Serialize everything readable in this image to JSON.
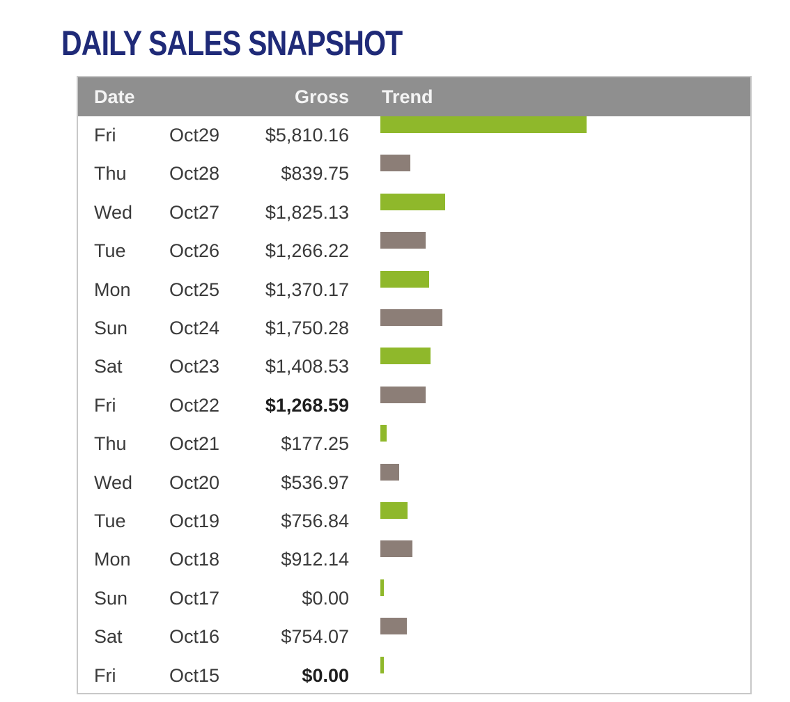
{
  "title": "DAILY SALES SNAPSHOT",
  "header": {
    "date": "Date",
    "gross": "Gross",
    "trend": "Trend"
  },
  "colors": {
    "title": "#1f2a78",
    "header_bg": "#8f8f8f",
    "bar_green": "#8fb82b",
    "bar_gray": "#8c7e77"
  },
  "chart_data": {
    "type": "bar",
    "title": "DAILY SALES SNAPSHOT",
    "xlabel": "Date",
    "ylabel": "Gross",
    "orientation": "horizontal",
    "categories": [
      "Fri Oct29",
      "Thu Oct28",
      "Wed Oct27",
      "Tue Oct26",
      "Mon Oct25",
      "Sun Oct24",
      "Sat Oct23",
      "Fri Oct22",
      "Thu Oct21",
      "Wed Oct20",
      "Tue Oct19",
      "Mon Oct18",
      "Sun Oct17",
      "Sat Oct16",
      "Fri Oct15"
    ],
    "values": [
      5810.16,
      839.75,
      1825.13,
      1266.22,
      1370.17,
      1750.28,
      1408.53,
      1268.59,
      177.25,
      536.97,
      756.84,
      912.14,
      0.0,
      754.07,
      0.0
    ],
    "xlim": [
      0,
      5810.16
    ],
    "grid": false,
    "legend": "none"
  },
  "rows": [
    {
      "day": "Fri",
      "date": "Oct29",
      "gross": "$5,810.16",
      "value": 5810.16,
      "bold": false,
      "color": "green"
    },
    {
      "day": "Thu",
      "date": "Oct28",
      "gross": "$839.75",
      "value": 839.75,
      "bold": false,
      "color": "gray"
    },
    {
      "day": "Wed",
      "date": "Oct27",
      "gross": "$1,825.13",
      "value": 1825.13,
      "bold": false,
      "color": "green"
    },
    {
      "day": "Tue",
      "date": "Oct26",
      "gross": "$1,266.22",
      "value": 1266.22,
      "bold": false,
      "color": "gray"
    },
    {
      "day": "Mon",
      "date": "Oct25",
      "gross": "$1,370.17",
      "value": 1370.17,
      "bold": false,
      "color": "green"
    },
    {
      "day": "Sun",
      "date": "Oct24",
      "gross": "$1,750.28",
      "value": 1750.28,
      "bold": false,
      "color": "gray"
    },
    {
      "day": "Sat",
      "date": "Oct23",
      "gross": "$1,408.53",
      "value": 1408.53,
      "bold": false,
      "color": "green"
    },
    {
      "day": "Fri",
      "date": "Oct22",
      "gross": "$1,268.59",
      "value": 1268.59,
      "bold": true,
      "color": "gray"
    },
    {
      "day": "Thu",
      "date": "Oct21",
      "gross": "$177.25",
      "value": 177.25,
      "bold": false,
      "color": "green"
    },
    {
      "day": "Wed",
      "date": "Oct20",
      "gross": "$536.97",
      "value": 536.97,
      "bold": false,
      "color": "gray"
    },
    {
      "day": "Tue",
      "date": "Oct19",
      "gross": "$756.84",
      "value": 756.84,
      "bold": false,
      "color": "green"
    },
    {
      "day": "Mon",
      "date": "Oct18",
      "gross": "$912.14",
      "value": 912.14,
      "bold": false,
      "color": "gray"
    },
    {
      "day": "Sun",
      "date": "Oct17",
      "gross": "$0.00",
      "value": 0.0,
      "bold": false,
      "color": "green"
    },
    {
      "day": "Sat",
      "date": "Oct16",
      "gross": "$754.07",
      "value": 754.07,
      "bold": false,
      "color": "gray"
    },
    {
      "day": "Fri",
      "date": "Oct15",
      "gross": "$0.00",
      "value": 0.0,
      "bold": true,
      "color": "green"
    }
  ]
}
